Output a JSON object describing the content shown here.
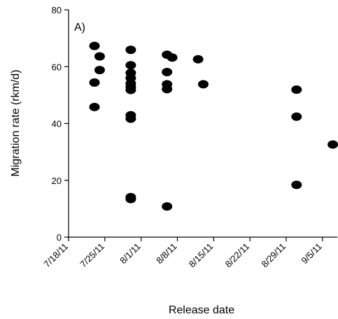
{
  "chart_data": {
    "type": "scatter",
    "panel_label": "A)",
    "xlabel": "Release date",
    "ylabel": "Migration rate (rkm/d)",
    "xlim": [
      "2011-07-18",
      "2011-09-08"
    ],
    "ylim": [
      0,
      80
    ],
    "x_ticks": [
      {
        "date": "2011-07-18",
        "label": "7/18/11"
      },
      {
        "date": "2011-07-25",
        "label": "7/25/11"
      },
      {
        "date": "2011-08-01",
        "label": "8/1/11"
      },
      {
        "date": "2011-08-08",
        "label": "8/8/11"
      },
      {
        "date": "2011-08-15",
        "label": "8/15/11"
      },
      {
        "date": "2011-08-22",
        "label": "8/22/11"
      },
      {
        "date": "2011-08-29",
        "label": "8/29/11"
      },
      {
        "date": "2011-09-05",
        "label": "9/5/11"
      }
    ],
    "y_ticks": [
      0,
      20,
      40,
      60,
      80
    ],
    "series": [
      {
        "color": "#000000",
        "points": [
          {
            "x": "2011-07-23",
            "y": 67.3
          },
          {
            "x": "2011-07-23",
            "y": 54.4
          },
          {
            "x": "2011-07-23",
            "y": 45.8
          },
          {
            "x": "2011-07-24",
            "y": 63.6
          },
          {
            "x": "2011-07-24",
            "y": 58.8
          },
          {
            "x": "2011-07-30",
            "y": 65.9
          },
          {
            "x": "2011-07-30",
            "y": 60.5
          },
          {
            "x": "2011-07-30",
            "y": 57.8
          },
          {
            "x": "2011-07-30",
            "y": 56.0
          },
          {
            "x": "2011-07-30",
            "y": 54.1
          },
          {
            "x": "2011-07-30",
            "y": 52.9
          },
          {
            "x": "2011-07-30",
            "y": 51.8
          },
          {
            "x": "2011-07-30",
            "y": 42.9
          },
          {
            "x": "2011-07-30",
            "y": 41.7
          },
          {
            "x": "2011-07-30",
            "y": 14.1
          },
          {
            "x": "2011-07-30",
            "y": 13.4
          },
          {
            "x": "2011-08-06",
            "y": 64.2
          },
          {
            "x": "2011-08-06",
            "y": 58.1
          },
          {
            "x": "2011-08-06",
            "y": 53.8
          },
          {
            "x": "2011-08-06",
            "y": 52.1
          },
          {
            "x": "2011-08-06",
            "y": 10.8
          },
          {
            "x": "2011-08-07",
            "y": 63.2
          },
          {
            "x": "2011-08-12",
            "y": 62.6
          },
          {
            "x": "2011-08-13",
            "y": 53.8
          },
          {
            "x": "2011-08-31",
            "y": 51.9
          },
          {
            "x": "2011-08-31",
            "y": 42.4
          },
          {
            "x": "2011-08-31",
            "y": 18.4
          },
          {
            "x": "2011-09-07",
            "y": 32.6
          }
        ]
      }
    ],
    "grid": false,
    "legend": "none"
  }
}
